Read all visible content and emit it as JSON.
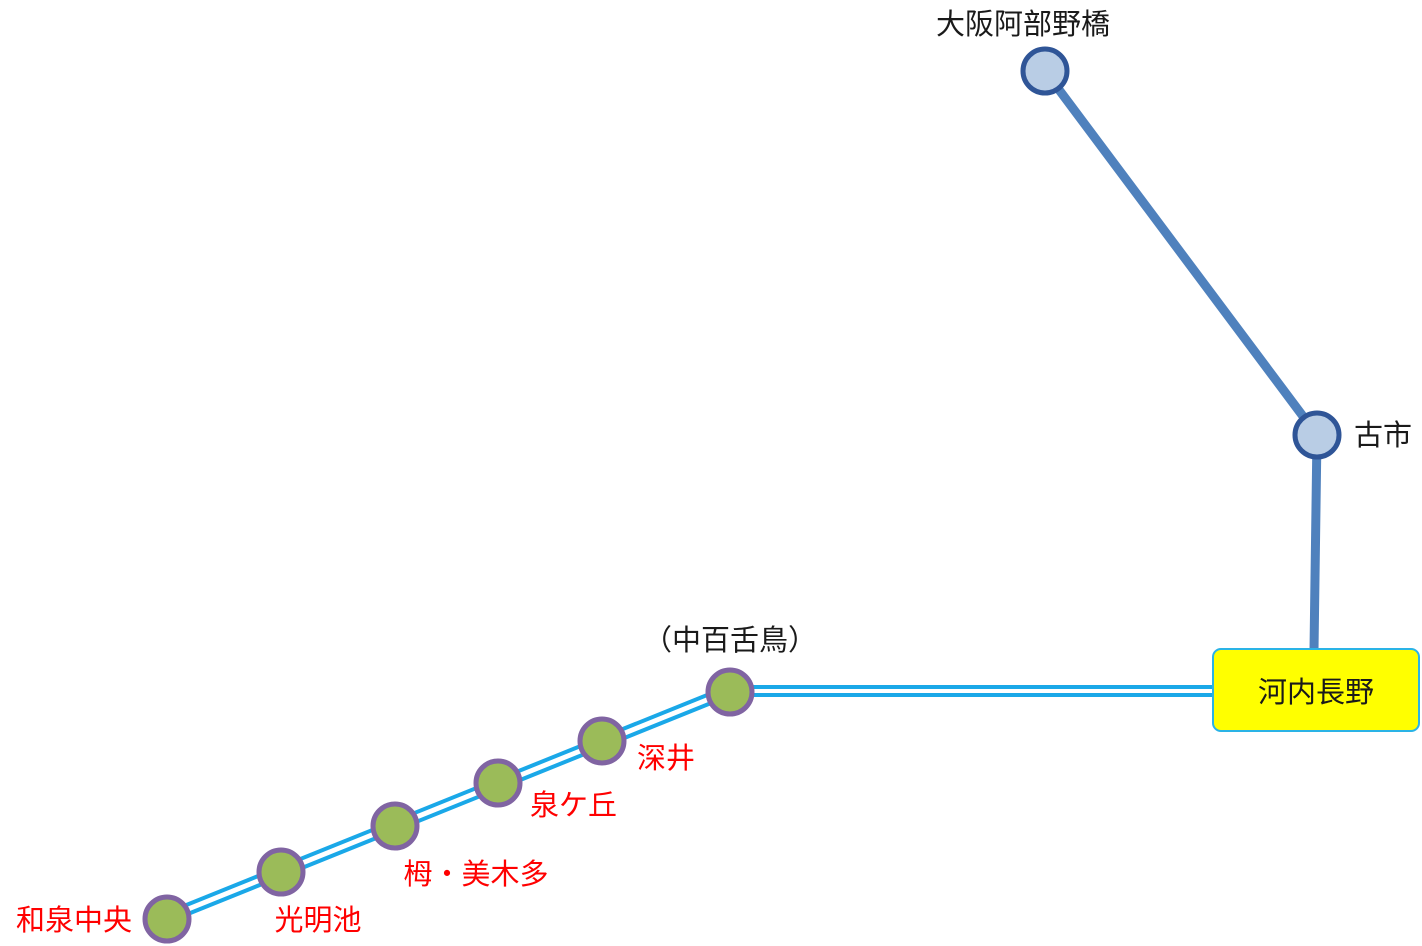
{
  "colors": {
    "kintetsu_line": "#4f81bd",
    "kintetsu_station_fill": "#b9cde5",
    "kintetsu_station_stroke": "#2f5597",
    "nankai_line": "#1aa8e8",
    "nankai_station_fill": "#9bbb59",
    "nankai_station_stroke": "#8064a2",
    "terminal_fill": "#ffff00",
    "terminal_border": "#2ab3e6",
    "label_black": "#1a1a1a",
    "label_red": "#ff0000"
  },
  "stations": {
    "osaka_abenobashi": "大阪阿部野橋",
    "furuichi": "古市",
    "kawachinagano": "河内長野",
    "nakamozu": "（中百舌鳥）",
    "fukai": "深井",
    "izumigaoka": "泉ケ丘",
    "toga_mikita": "栂・美木多",
    "komyoike": "光明池",
    "izumi_chuo": "和泉中央"
  }
}
